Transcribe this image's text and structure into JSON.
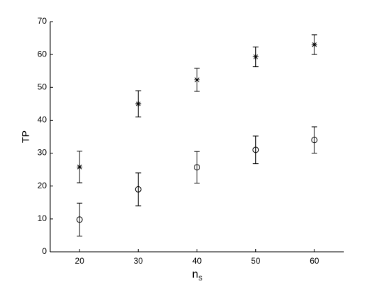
{
  "chart_data": {
    "type": "errorbar",
    "xlabel": {
      "base": "n",
      "subscript": "s"
    },
    "ylabel": "TP",
    "x": [
      20,
      30,
      40,
      50,
      60
    ],
    "series": [
      {
        "marker": "asterisk",
        "color": "#000000",
        "values": [
          25.8,
          45,
          52.3,
          59.3,
          63
        ],
        "errors": [
          4.8,
          4,
          3.5,
          3,
          3
        ]
      },
      {
        "marker": "circle",
        "color": "#000000",
        "values": [
          9.8,
          19,
          25.7,
          31,
          34
        ],
        "errors": [
          5,
          5,
          4.8,
          4.2,
          4
        ]
      }
    ],
    "xlim": [
      15,
      65
    ],
    "xticks": [
      20,
      30,
      40,
      50,
      60
    ],
    "ylim": [
      0,
      70
    ],
    "yticks": [
      0,
      10,
      20,
      30,
      40,
      50,
      60,
      70
    ],
    "grid": false
  }
}
